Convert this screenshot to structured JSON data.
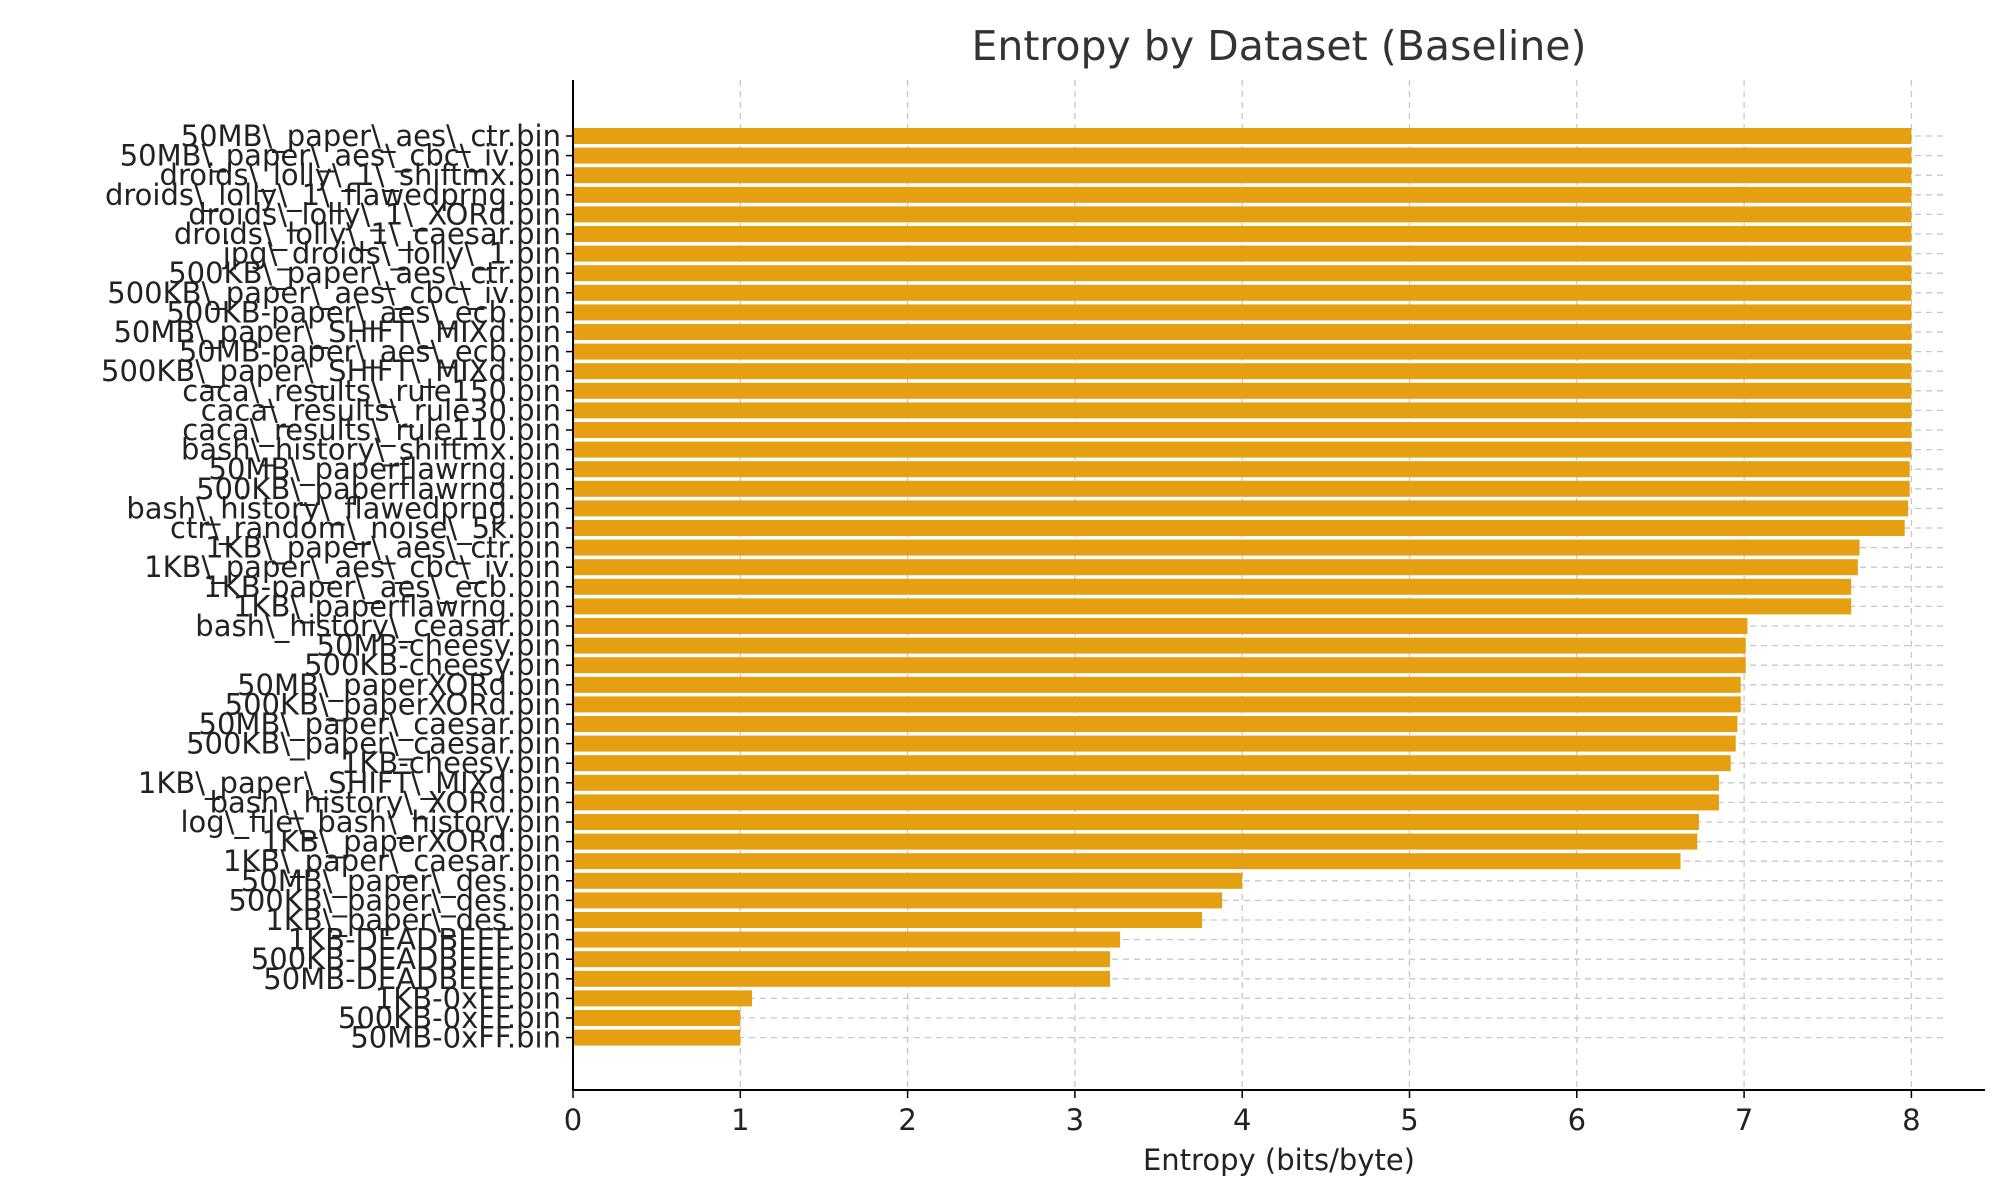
{
  "chart_data": {
    "type": "bar",
    "orientation": "horizontal",
    "title": "Entropy by Dataset (Baseline)",
    "xlabel": "Entropy (bits/byte)",
    "ylabel": "",
    "xlim": [
      0,
      8.4
    ],
    "xticks": [
      0,
      1,
      2,
      3,
      4,
      5,
      6,
      7,
      8
    ],
    "xtick_labels": [
      "0",
      "1",
      "2",
      "3",
      "4",
      "5",
      "6",
      "7",
      "8"
    ],
    "grid": true,
    "bar_color": "#e5a012",
    "grid_color": "#c8c8c8",
    "categories": [
      "50MB\\_paper\\_aes\\_ctr.bin",
      "50MB\\_paper\\_aes\\_cbc\\_iv.bin",
      "droids\\_lolly\\_1\\_shiftmx.bin",
      "droids\\_lolly\\_1\\_flawedprng.bin",
      "droids\\_lolly\\_1\\_XORd.bin",
      "droids\\_lolly\\_1\\_caesar.bin",
      "jpg\\_droids\\_lolly\\_1.bin",
      "500KB\\_paper\\_aes\\_ctr.bin",
      "500KB\\_paper\\_aes\\_cbc\\_iv.bin",
      "500KB-paper\\_aes\\_ecb.bin",
      "50MB\\_paper\\_SHIFT\\_MIXd.bin",
      "50MB-paper\\_aes\\_ecb.bin",
      "500KB\\_paper\\_SHIFT\\_MIXd.bin",
      "caca\\_results\\_rule150.bin",
      "caca\\_results\\_rule30.bin",
      "caca\\_results\\_rule110.bin",
      "bash\\_history\\_shiftmx.bin",
      "50MB\\_paperflawrng.bin",
      "500KB\\_paperflawrng.bin",
      "bash\\_history\\_flawedprng.bin",
      "ctr\\_random\\_noise\\_5k.bin",
      "1KB\\_paper\\_aes\\_ctr.bin",
      "1KB\\_paper\\_aes\\_cbc\\_iv.bin",
      "1KB-paper\\_aes\\_ecb.bin",
      "1KB\\_paperflawrng.bin",
      "bash\\_history\\_ceasar.bin",
      "50MB-cheesy.bin",
      "500KB-cheesy.bin",
      "50MB\\_paperXORd.bin",
      "500KB\\_paperXORd.bin",
      "50MB\\_paper\\_caesar.bin",
      "500KB\\_paper\\_caesar.bin",
      "1KB-cheesy.bin",
      "1KB\\_paper\\_SHIFT\\_MIXd.bin",
      "bash\\_history\\_XORd.bin",
      "log\\_file\\_bash\\_history.bin",
      "1KB\\_paperXORd.bin",
      "1KB\\_paper\\_caesar.bin",
      "50MB\\_paper\\_des.bin",
      "500KB\\_paper\\_des.bin",
      "1KB\\_paper\\_des.bin",
      "1KB-DEADBEEF.bin",
      "500KB-DEADBEEF.bin",
      "50MB-DEADBEEF.bin",
      "1KB-0xFF.bin",
      "500KB-0xFF.bin",
      "50MB-0xFF.bin"
    ],
    "values": [
      8.0,
      8.0,
      8.0,
      8.0,
      8.0,
      8.0,
      8.0,
      8.0,
      8.0,
      8.0,
      8.0,
      8.0,
      8.0,
      8.0,
      8.0,
      8.0,
      8.0,
      7.99,
      7.99,
      7.98,
      7.96,
      7.69,
      7.68,
      7.64,
      7.64,
      7.02,
      7.01,
      7.01,
      6.98,
      6.98,
      6.96,
      6.95,
      6.92,
      6.85,
      6.85,
      6.73,
      6.72,
      6.62,
      4.0,
      3.88,
      3.76,
      3.27,
      3.21,
      3.21,
      1.07,
      1.0,
      1.0
    ]
  }
}
